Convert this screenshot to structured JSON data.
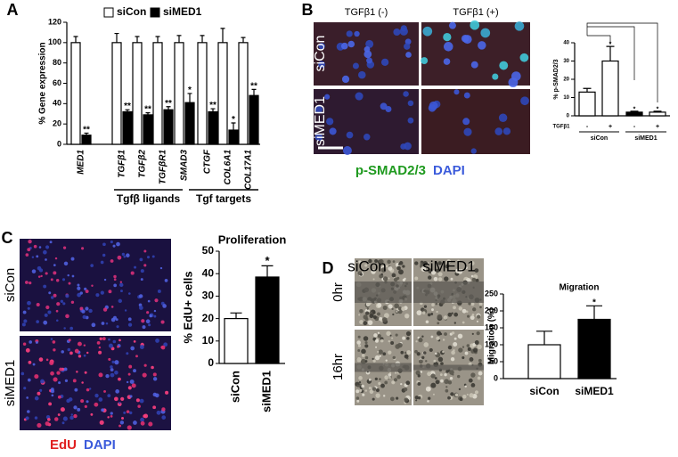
{
  "chart_data": [
    {
      "panel": "A",
      "type": "bar",
      "y_label": "% Gene expression",
      "categories": [
        "MED1",
        "TGFβ1",
        "TGFβ2",
        "TGFβR1",
        "SMAD3",
        "CTGF",
        "COL6A1",
        "COL17A1"
      ],
      "series": [
        {
          "name": "siCon",
          "color": "#ffffff",
          "values": [
            100,
            100,
            100,
            100,
            100,
            100,
            100,
            100
          ],
          "errors": [
            6,
            9,
            6,
            6,
            7,
            7,
            14,
            5
          ]
        },
        {
          "name": "siMED1",
          "color": "#000000",
          "values": [
            9,
            32,
            29,
            34,
            41,
            32,
            14,
            48
          ],
          "errors": [
            2,
            2,
            2,
            3,
            9,
            3,
            7,
            6
          ],
          "annotations": [
            "**",
            "**",
            "**",
            "**",
            "*",
            "**",
            "*",
            "**"
          ]
        }
      ],
      "groups": [
        "Tgfβ ligands",
        "Tgf targets"
      ],
      "ylim": [
        0,
        120
      ],
      "yticks": [
        0,
        20,
        40,
        60,
        80,
        100,
        120
      ]
    },
    {
      "panel": "B",
      "type": "bar",
      "y_label": "% p-SMAD2/3",
      "x_label": "TGFβ1",
      "categories": [
        "-",
        "+",
        "-",
        "+"
      ],
      "groups": [
        "siCon",
        "siMED1"
      ],
      "values": [
        13,
        30,
        2,
        2
      ],
      "errors": [
        2,
        8,
        0.5,
        0.5
      ],
      "colors": [
        "#ffffff",
        "#ffffff",
        "#000000",
        "#ffffff"
      ],
      "annotations": [
        null,
        "*",
        "*",
        "*"
      ],
      "ylim": [
        0,
        40
      ],
      "yticks": [
        0,
        10,
        20,
        30,
        40
      ],
      "image_columns": [
        "TGFβ1 (-)",
        "TGFβ1 (+)"
      ],
      "image_rows": [
        "siCon",
        "siMED1"
      ],
      "stain_labels": [
        {
          "text": "p-SMAD2/3",
          "color": "#1f9a1f"
        },
        {
          "text": "DAPI",
          "color": "#3b5bdb"
        }
      ]
    },
    {
      "panel": "C",
      "type": "bar",
      "title": "Proliferation",
      "y_label": "% EdU+ cells",
      "categories": [
        "siCon",
        "siMED1"
      ],
      "values": [
        20,
        38.5
      ],
      "errors": [
        2.5,
        5
      ],
      "colors": [
        "#ffffff",
        "#000000"
      ],
      "annotations": [
        null,
        "*"
      ],
      "ylim": [
        0,
        50
      ],
      "yticks": [
        0,
        10,
        20,
        30,
        40,
        50
      ],
      "image_rows": [
        "siCon",
        "siMED1"
      ],
      "stain_labels": [
        {
          "text": "EdU",
          "color": "#e02020"
        },
        {
          "text": "DAPI",
          "color": "#3b5bdb"
        }
      ]
    },
    {
      "panel": "D",
      "type": "bar",
      "title": "Migration",
      "y_label": "Migration (%)",
      "categories": [
        "siCon",
        "siMED1"
      ],
      "values": [
        100,
        175
      ],
      "errors": [
        40,
        40
      ],
      "colors": [
        "#ffffff",
        "#000000"
      ],
      "annotations": [
        null,
        "*"
      ],
      "ylim": [
        0,
        250
      ],
      "yticks": [
        0,
        50,
        100,
        150,
        200,
        250
      ],
      "image_columns": [
        "siCon",
        "siMED1"
      ],
      "image_rows": [
        "0hr",
        "16hr"
      ]
    }
  ]
}
